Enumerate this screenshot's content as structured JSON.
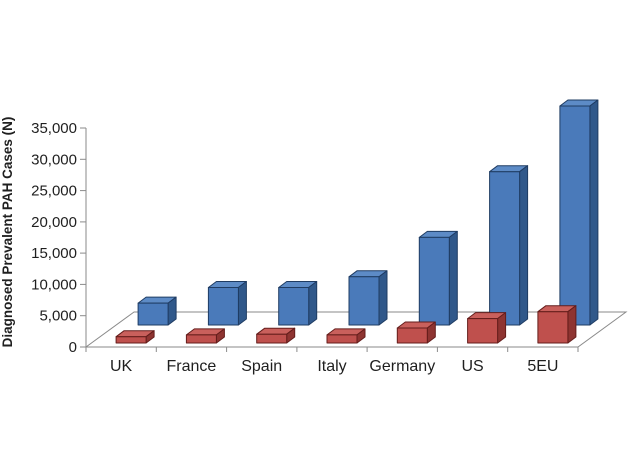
{
  "chart_data": {
    "type": "bar",
    "variant": "3d-clustered-column",
    "ylabel": "Diagnosed Prevalent PAH Cases (N)",
    "categories": [
      "UK",
      "France",
      "Spain",
      "Italy",
      "Germany",
      "US",
      "5EU"
    ],
    "series": [
      {
        "name": "red-front-series",
        "palette": "red",
        "depth_row": 0,
        "values": [
          1000,
          1300,
          1400,
          1300,
          2400,
          3900,
          5000
        ]
      },
      {
        "name": "blue-back-series",
        "palette": "blue",
        "depth_row": 1,
        "values": [
          3500,
          6000,
          6000,
          7700,
          14000,
          24500,
          35000
        ]
      }
    ],
    "ylim": [
      0,
      35000
    ],
    "ytick_step": 5000,
    "yticks": [
      "0",
      "5,000",
      "10,000",
      "15,000",
      "20,000",
      "25,000",
      "30,000",
      "35,000"
    ],
    "grid": "none",
    "legend": "none",
    "colors": {
      "blue": {
        "front": "#4a7aba",
        "top": "#5d8bc6",
        "side": "#30588a",
        "stroke": "#1f3c63"
      },
      "red": {
        "front": "#bf504d",
        "top": "#c9605c",
        "side": "#8e3431",
        "stroke": "#641d1b"
      },
      "axis_line": "#8a8a8a",
      "text": "#1f1f1f",
      "background": "#ffffff"
    }
  }
}
